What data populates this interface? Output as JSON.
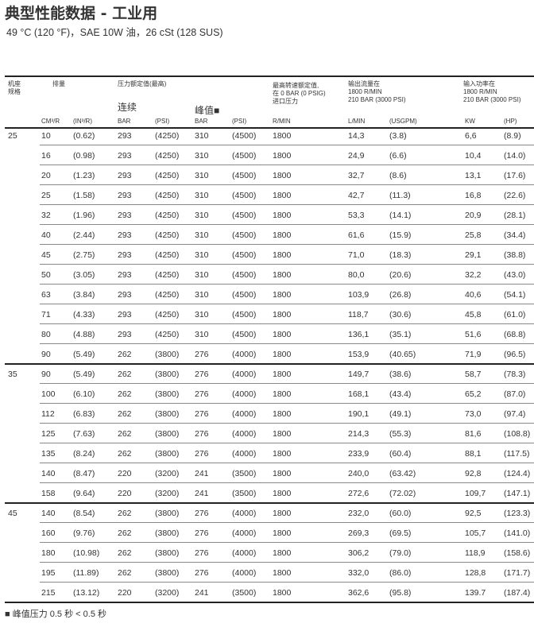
{
  "title": "典型性能数据 - 工业用",
  "subtitle": "49 °C (120 °F)，SAE 10W 油，26 cSt (128 SUS)",
  "headers": {
    "frame": "机座\n规格",
    "displacement": "排量",
    "pressure": "压力额定值(最高)",
    "continuous": "连续",
    "peak": "峰值■",
    "speed": "最高转速额定值,\n在 0 BAR (0 PSIG)\n进口压力",
    "flow": "输出流量在\n1800 R/MIN\n210 BAR (3000 PSI)",
    "power": "输入功率在\n1800 R/MIN\n210 BAR (3000 PSI)",
    "units": [
      "CM³/R",
      "(IN³/R)",
      "BAR",
      "(PSI)",
      "BAR",
      "(PSI)",
      "R/MIN",
      "L/MIN",
      "(USGPM)",
      "KW",
      "(HP)"
    ]
  },
  "groups": [
    {
      "frame": "25",
      "rows": [
        [
          "10",
          "(0.62)",
          "293",
          "(4250)",
          "310",
          "(4500)",
          "1800",
          "14,3",
          "(3.8)",
          "6,6",
          "(8.9)"
        ],
        [
          "16",
          "(0.98)",
          "293",
          "(4250)",
          "310",
          "(4500)",
          "1800",
          "24,9",
          "(6.6)",
          "10,4",
          "(14.0)"
        ],
        [
          "20",
          "(1.23)",
          "293",
          "(4250)",
          "310",
          "(4500)",
          "1800",
          "32,7",
          "(8.6)",
          "13,1",
          "(17.6)"
        ],
        [
          "25",
          "(1.58)",
          "293",
          "(4250)",
          "310",
          "(4500)",
          "1800",
          "42,7",
          "(11.3)",
          "16,8",
          "(22.6)"
        ],
        [
          "32",
          "(1.96)",
          "293",
          "(4250)",
          "310",
          "(4500)",
          "1800",
          "53,3",
          "(14.1)",
          "20,9",
          "(28.1)"
        ],
        [
          "40",
          "(2.44)",
          "293",
          "(4250)",
          "310",
          "(4500)",
          "1800",
          "61,6",
          "(15.9)",
          "25,8",
          "(34.4)"
        ],
        [
          "45",
          "(2.75)",
          "293",
          "(4250)",
          "310",
          "(4500)",
          "1800",
          "71,0",
          "(18.3)",
          "29,1",
          "(38.8)"
        ],
        [
          "50",
          "(3.05)",
          "293",
          "(4250)",
          "310",
          "(4500)",
          "1800",
          "80,0",
          "(20.6)",
          "32,2",
          "(43.0)"
        ],
        [
          "63",
          "(3.84)",
          "293",
          "(4250)",
          "310",
          "(4500)",
          "1800",
          "103,9",
          "(26.8)",
          "40,6",
          "(54.1)"
        ],
        [
          "71",
          "(4.33)",
          "293",
          "(4250)",
          "310",
          "(4500)",
          "1800",
          "118,7",
          "(30.6)",
          "45,8",
          "(61.0)"
        ],
        [
          "80",
          "(4.88)",
          "293",
          "(4250)",
          "310",
          "(4500)",
          "1800",
          "136,1",
          "(35.1)",
          "51,6",
          "(68.8)"
        ],
        [
          "90",
          "(5.49)",
          "262",
          "(3800)",
          "276",
          "(4000)",
          "1800",
          "153,9",
          "(40.65)",
          "71,9",
          "(96.5)"
        ]
      ]
    },
    {
      "frame": "35",
      "rows": [
        [
          "90",
          "(5.49)",
          "262",
          "(3800)",
          "276",
          "(4000)",
          "1800",
          "149,7",
          "(38.6)",
          "58,7",
          "(78.3)"
        ],
        [
          "100",
          "(6.10)",
          "262",
          "(3800)",
          "276",
          "(4000)",
          "1800",
          "168,1",
          "(43.4)",
          "65,2",
          "(87.0)"
        ],
        [
          "112",
          "(6.83)",
          "262",
          "(3800)",
          "276",
          "(4000)",
          "1800",
          "190,1",
          "(49.1)",
          "73,0",
          "(97.4)"
        ],
        [
          "125",
          "(7.63)",
          "262",
          "(3800)",
          "276",
          "(4000)",
          "1800",
          "214,3",
          "(55.3)",
          "81,6",
          "(108.8)"
        ],
        [
          "135",
          "(8.24)",
          "262",
          "(3800)",
          "276",
          "(4000)",
          "1800",
          "233,9",
          "(60.4)",
          "88,1",
          "(117.5)"
        ],
        [
          "140",
          "(8.47)",
          "220",
          "(3200)",
          "241",
          "(3500)",
          "1800",
          "240,0",
          "(63.42)",
          "92,8",
          "(124.4)"
        ],
        [
          "158",
          "(9.64)",
          "220",
          "(3200)",
          "241",
          "(3500)",
          "1800",
          "272,6",
          "(72.02)",
          "109,7",
          "(147.1)"
        ]
      ]
    },
    {
      "frame": "45",
      "rows": [
        [
          "140",
          "(8.54)",
          "262",
          "(3800)",
          "276",
          "(4000)",
          "1800",
          "232,0",
          "(60.0)",
          "92,5",
          "(123.3)"
        ],
        [
          "160",
          "(9.76)",
          "262",
          "(3800)",
          "276",
          "(4000)",
          "1800",
          "269,3",
          "(69.5)",
          "105,7",
          "(141.0)"
        ],
        [
          "180",
          "(10.98)",
          "262",
          "(3800)",
          "276",
          "(4000)",
          "1800",
          "306,2",
          "(79.0)",
          "118,9",
          "(158.6)"
        ],
        [
          "195",
          "(11.89)",
          "262",
          "(3800)",
          "276",
          "(4000)",
          "1800",
          "332,0",
          "(86.0)",
          "128,8",
          "(171.7)"
        ],
        [
          "215",
          "(13.12)",
          "220",
          "(3200)",
          "241",
          "(3500)",
          "1800",
          "362,6",
          "(95.8)",
          "139.7",
          "(187.4)"
        ]
      ]
    }
  ],
  "footnote": "■ 峰值压力 0.5 秒  < 0.5 秒"
}
